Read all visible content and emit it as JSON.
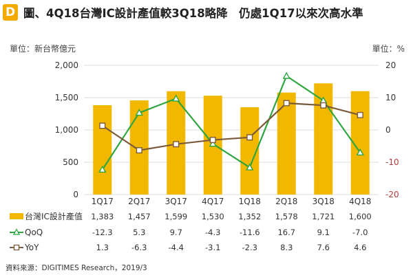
{
  "header": {
    "logo_letter": "D",
    "title": "圖、4Q18台灣IC設計產值較3Q18略降　仍處1Q17以來次高水準"
  },
  "units": {
    "left": "單位：新台幣億元",
    "right": "單位：%"
  },
  "colors": {
    "bar": "#f2b800",
    "qoq": "#2ea53f",
    "yoy": "#7a5a3a",
    "grid": "#dddddd",
    "right_axis_negative": "#b33a3a"
  },
  "chart_data": {
    "type": "bar",
    "categories": [
      "1Q17",
      "2Q17",
      "3Q17",
      "4Q17",
      "1Q18",
      "2Q18",
      "3Q18",
      "4Q18"
    ],
    "series": [
      {
        "name": "台灣IC設計產值",
        "type": "bar",
        "axis": "left",
        "values": [
          1383,
          1457,
          1599,
          1530,
          1352,
          1578,
          1721,
          1600
        ],
        "labels": [
          "1,383",
          "1,457",
          "1,599",
          "1,530",
          "1,352",
          "1,578",
          "1,721",
          "1,600"
        ]
      },
      {
        "name": "QoQ",
        "type": "line",
        "axis": "right",
        "marker": "triangle",
        "values": [
          -12.3,
          5.3,
          9.7,
          -4.3,
          -11.6,
          16.7,
          9.1,
          -7.0
        ],
        "labels": [
          "-12.3",
          "5.3",
          "9.7",
          "-4.3",
          "-11.6",
          "16.7",
          "9.1",
          "-7.0"
        ]
      },
      {
        "name": "YoY",
        "type": "line",
        "axis": "right",
        "marker": "square",
        "values": [
          1.3,
          -6.3,
          -4.4,
          -3.1,
          -2.3,
          8.3,
          7.6,
          4.6
        ],
        "labels": [
          "1.3",
          "-6.3",
          "-4.4",
          "-3.1",
          "-2.3",
          "8.3",
          "7.6",
          "4.6"
        ]
      }
    ],
    "left_axis": {
      "ylim": [
        0,
        2000
      ],
      "ticks": [
        0,
        500,
        1000,
        1500,
        2000
      ],
      "tick_labels": [
        "0",
        "500",
        "1,000",
        "1,500",
        "2,000"
      ]
    },
    "right_axis": {
      "ylim": [
        -20,
        20
      ],
      "ticks": [
        -20,
        -10,
        0,
        10,
        20
      ],
      "tick_labels": [
        "-20",
        "-10",
        "0",
        "10",
        "20"
      ]
    },
    "grid": true,
    "legend": "data-table-below"
  },
  "source": "資料來源：DIGITIMES Research，2019/3"
}
